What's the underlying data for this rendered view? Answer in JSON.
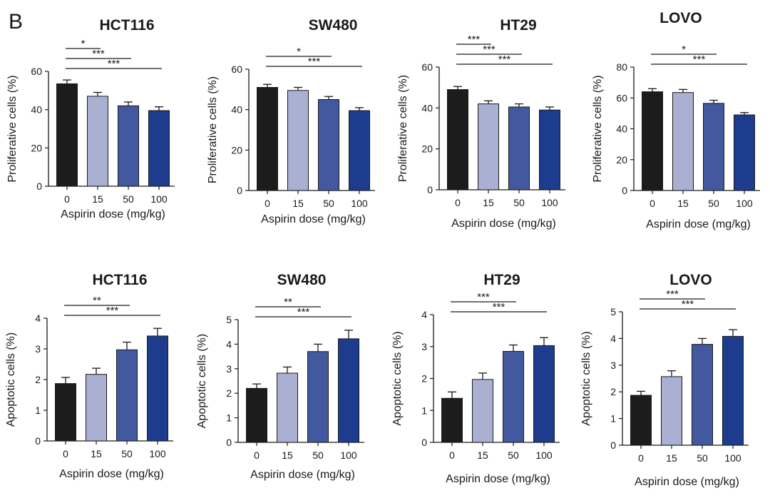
{
  "panel_label": "B",
  "chart_data": [
    {
      "type": "bar",
      "title": "HCT116",
      "categories": [
        "0",
        "15",
        "50",
        "100"
      ],
      "values": [
        53.5,
        47,
        42,
        39.5
      ],
      "errors": [
        2,
        2,
        2,
        2
      ],
      "xlabel": "Aspirin dose (mg/kg)",
      "ylabel": "Proliferative cells (%)",
      "ylim": [
        0,
        60
      ],
      "yticks": [
        0,
        20,
        40,
        60
      ],
      "annotations": [
        {
          "from": "0",
          "to": "15",
          "label": "*"
        },
        {
          "from": "0",
          "to": "50",
          "label": "***"
        },
        {
          "from": "0",
          "to": "100",
          "label": "***"
        }
      ]
    },
    {
      "type": "bar",
      "title": "SW480",
      "categories": [
        "0",
        "15",
        "50",
        "100"
      ],
      "values": [
        51,
        49.5,
        45,
        39.5
      ],
      "errors": [
        1.5,
        1.5,
        1.5,
        1.5
      ],
      "xlabel": "Aspirin dose (mg/kg)",
      "ylabel": "Proliferative cells (%)",
      "ylim": [
        0,
        60
      ],
      "yticks": [
        0,
        20,
        40,
        60
      ],
      "annotations": [
        {
          "from": "0",
          "to": "50",
          "label": "*"
        },
        {
          "from": "0",
          "to": "100",
          "label": "***"
        }
      ]
    },
    {
      "type": "bar",
      "title": "HT29",
      "categories": [
        "0",
        "15",
        "50",
        "100"
      ],
      "values": [
        49,
        42,
        40.5,
        39
      ],
      "errors": [
        1.5,
        1.5,
        1.5,
        1.5
      ],
      "xlabel": "Aspirin dose (mg/kg)",
      "ylabel": "Proliferative cells (%)",
      "ylim": [
        0,
        60
      ],
      "yticks": [
        0,
        20,
        40,
        60
      ],
      "annotations": [
        {
          "from": "0",
          "to": "15",
          "label": "***"
        },
        {
          "from": "0",
          "to": "50",
          "label": "***"
        },
        {
          "from": "0",
          "to": "100",
          "label": "***"
        }
      ]
    },
    {
      "type": "bar",
      "title": "LOVO",
      "categories": [
        "0",
        "15",
        "50",
        "100"
      ],
      "values": [
        64,
        63.5,
        56.5,
        49
      ],
      "errors": [
        2,
        2,
        2,
        1.5
      ],
      "xlabel": "Aspirin dose (mg/kg)",
      "ylabel": "Proliferative cells (%)",
      "ylim": [
        0,
        80
      ],
      "yticks": [
        0,
        20,
        40,
        60,
        80
      ],
      "annotations": [
        {
          "from": "0",
          "to": "50",
          "label": "*"
        },
        {
          "from": "0",
          "to": "100",
          "label": "***"
        }
      ]
    },
    {
      "type": "bar",
      "title": "HCT116",
      "categories": [
        "0",
        "15",
        "50",
        "100"
      ],
      "values": [
        1.87,
        2.17,
        2.97,
        3.42
      ],
      "errors": [
        0.2,
        0.2,
        0.25,
        0.25
      ],
      "xlabel": "Aspirin dose (mg/kg)",
      "ylabel": "Apoptotic cells (%)",
      "ylim": [
        0,
        4
      ],
      "yticks": [
        0,
        1,
        2,
        3,
        4
      ],
      "annotations": [
        {
          "from": "0",
          "to": "50",
          "label": "**"
        },
        {
          "from": "0",
          "to": "100",
          "label": "***"
        }
      ]
    },
    {
      "type": "bar",
      "title": "SW480",
      "categories": [
        "0",
        "15",
        "50",
        "100"
      ],
      "values": [
        2.2,
        2.82,
        3.7,
        4.22
      ],
      "errors": [
        0.18,
        0.25,
        0.3,
        0.35
      ],
      "xlabel": "Aspirin dose (mg/kg)",
      "ylabel": "Apoptotic cells (%)",
      "ylim": [
        0,
        5
      ],
      "yticks": [
        0,
        1,
        2,
        3,
        4,
        5
      ],
      "annotations": [
        {
          "from": "0",
          "to": "50",
          "label": "**"
        },
        {
          "from": "0",
          "to": "100",
          "label": "***"
        }
      ]
    },
    {
      "type": "bar",
      "title": "HT29",
      "categories": [
        "0",
        "15",
        "50",
        "100"
      ],
      "values": [
        1.38,
        1.97,
        2.85,
        3.03
      ],
      "errors": [
        0.2,
        0.2,
        0.2,
        0.25
      ],
      "xlabel": "Aspirin dose (mg/kg)",
      "ylabel": "Apoptotic cells (%)",
      "ylim": [
        0,
        4
      ],
      "yticks": [
        0,
        1,
        2,
        3,
        4
      ],
      "annotations": [
        {
          "from": "0",
          "to": "50",
          "label": "***"
        },
        {
          "from": "0",
          "to": "100",
          "label": "***"
        }
      ]
    },
    {
      "type": "bar",
      "title": "LOVO",
      "categories": [
        "0",
        "15",
        "50",
        "100"
      ],
      "values": [
        1.87,
        2.57,
        3.78,
        4.08
      ],
      "errors": [
        0.15,
        0.22,
        0.22,
        0.25
      ],
      "xlabel": "Aspirin dose (mg/kg)",
      "ylabel": "Apoptotic cells (%)",
      "ylim": [
        0,
        5
      ],
      "yticks": [
        0,
        1,
        2,
        3,
        4,
        5
      ],
      "annotations": [
        {
          "from": "0",
          "to": "50",
          "label": "***"
        },
        {
          "from": "0",
          "to": "100",
          "label": "***"
        }
      ]
    }
  ],
  "colors": {
    "bars": [
      "#1c1c1c",
      "#aab0d2",
      "#42589f",
      "#1e3c8e"
    ],
    "axis": "#1a1a1a"
  }
}
